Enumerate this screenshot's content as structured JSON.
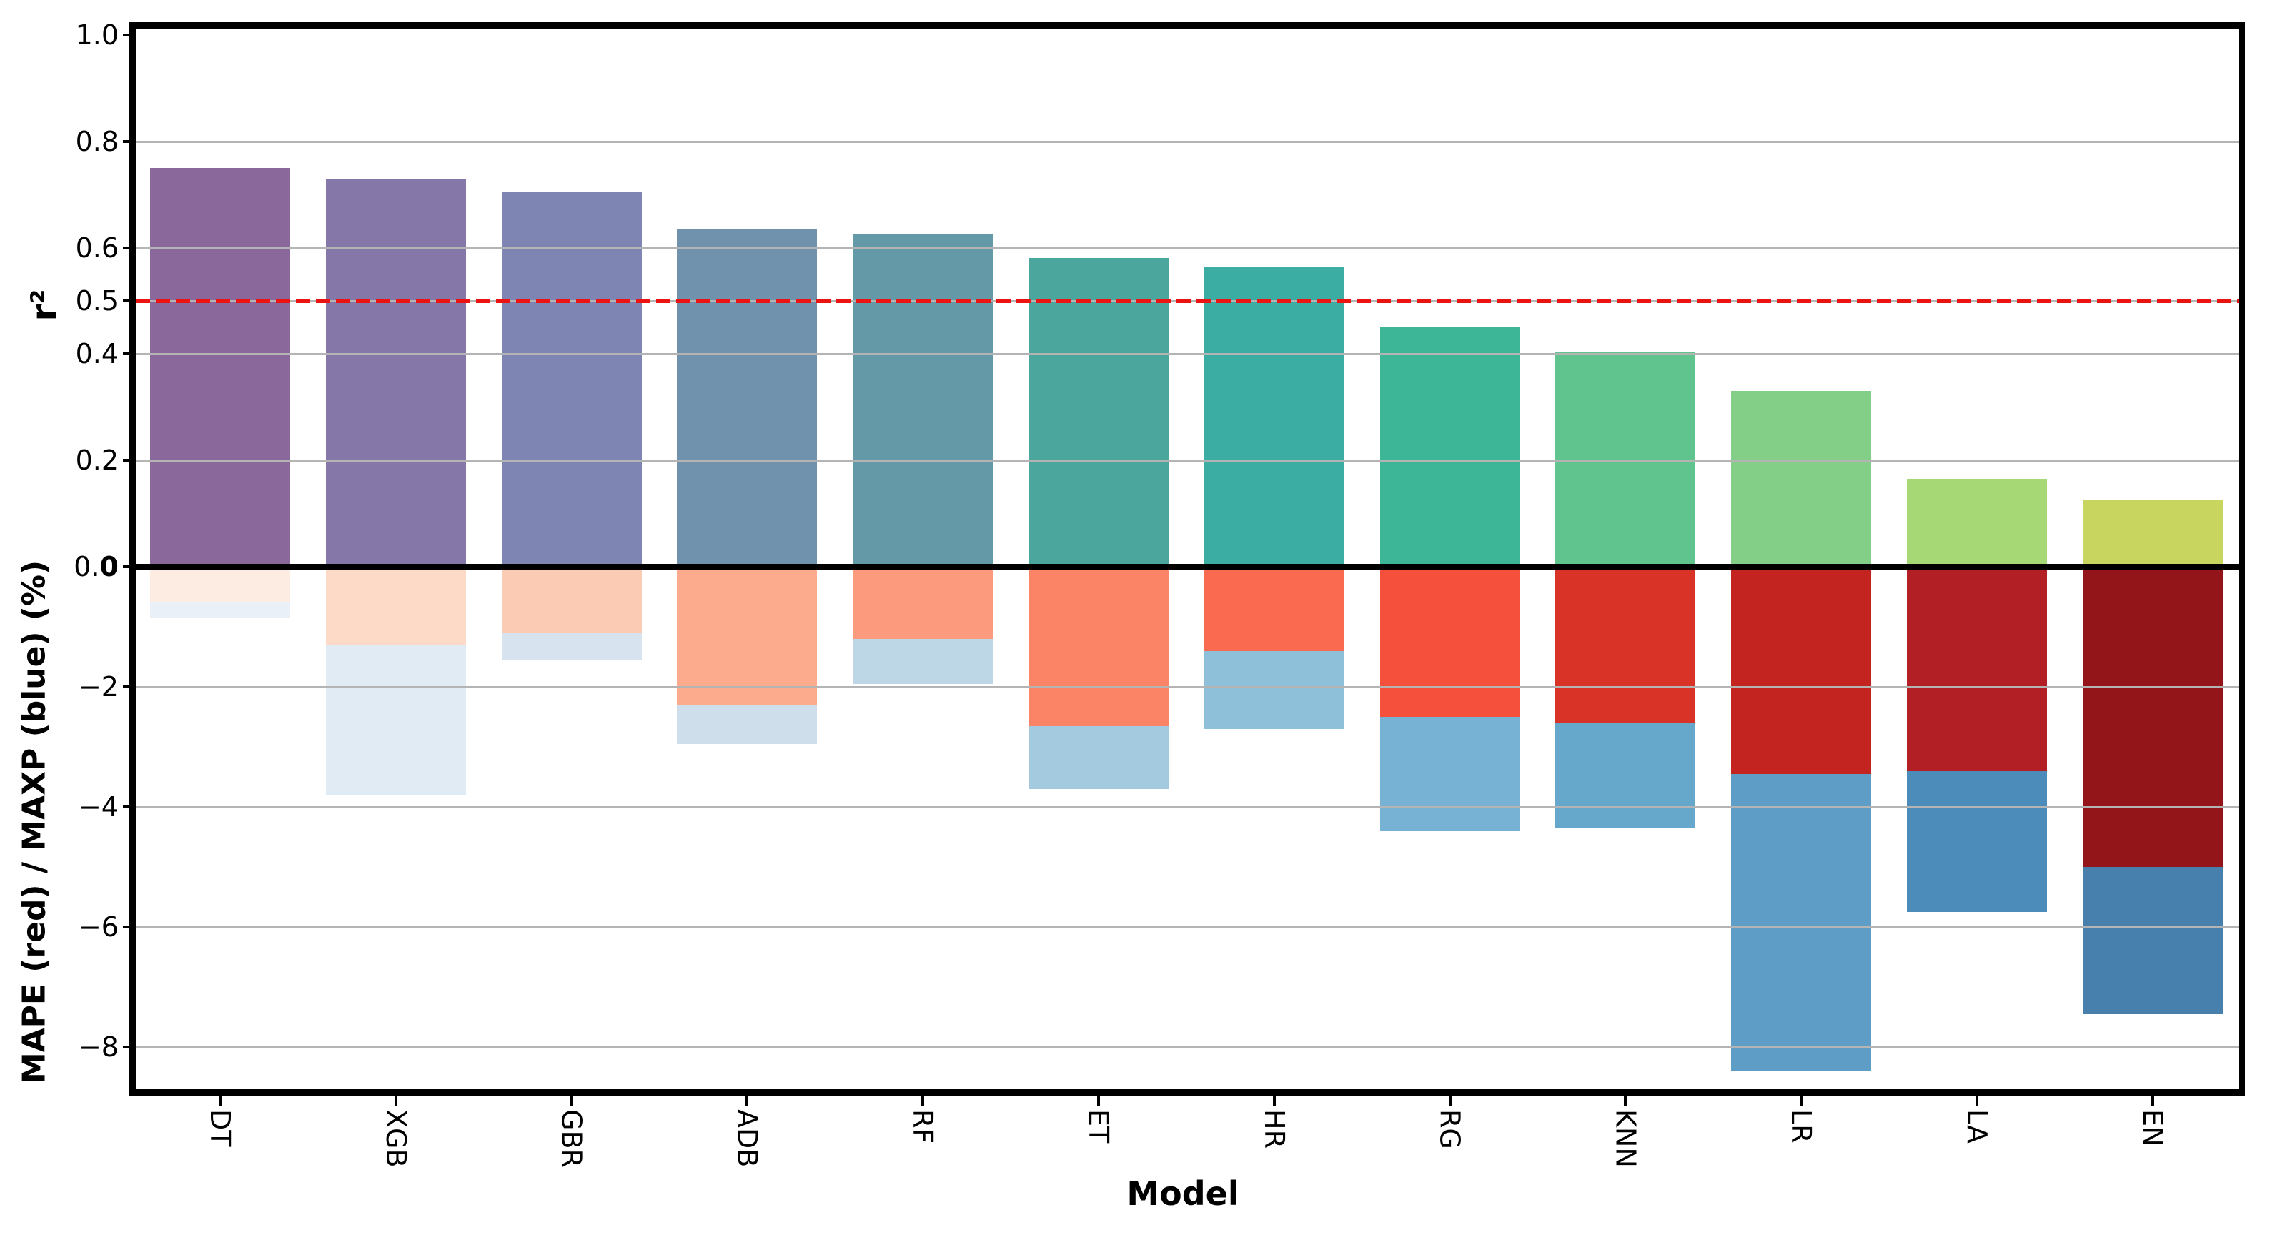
{
  "chart_data": {
    "type": "bar",
    "description": "Model comparison: r-squared bars above zero (colormap purple-to-yellow-green), MAPE (red) and MAXP (blue) percentage bars below zero, overlaid from the zero line downward.",
    "axes": {
      "xlabel": "Model",
      "ylabel_top": "r²",
      "ylabel_bottom": "MAPE (red) / MAXP (blue) (%)",
      "ylim_top": [
        0.0,
        1.0
      ],
      "ylim_bottom": [
        0.0,
        -8.7
      ],
      "grid": "on"
    },
    "y_axis_top_ticks": [
      {
        "label": "1.0",
        "value": 1.0,
        "gridline": false
      },
      {
        "label": "0.8",
        "value": 0.8,
        "gridline": true
      },
      {
        "label": "0.6",
        "value": 0.6,
        "gridline": true
      },
      {
        "label": "0.5",
        "value": 0.5,
        "gridline": true
      },
      {
        "label": "0.4",
        "value": 0.4,
        "gridline": true
      },
      {
        "label": "0.2",
        "value": 0.2,
        "gridline": true
      },
      {
        "label": "0.0",
        "value": 0.0,
        "gridline": false,
        "overlapped_bold": true
      }
    ],
    "y_axis_bottom_ticks": [
      {
        "label": "−2",
        "value": -2,
        "gridline": true
      },
      {
        "label": "−4",
        "value": -4,
        "gridline": true
      },
      {
        "label": "−6",
        "value": -6,
        "gridline": true
      },
      {
        "label": "−8",
        "value": -8,
        "gridline": true
      }
    ],
    "reference_line": {
      "value": 0.5,
      "color": "#ec1313",
      "style": "dashed"
    },
    "gridline_color": "#b4b4b4",
    "models": [
      {
        "label": "DT",
        "r2": 0.75,
        "mape_pct": -0.6,
        "maxp_pct": -0.85,
        "r2_color": "#8a689b",
        "mape_color": "#fdece1",
        "maxp_color": "#e9f0f8"
      },
      {
        "label": "XGB",
        "r2": 0.73,
        "mape_pct": -1.3,
        "maxp_pct": -3.8,
        "r2_color": "#8677a9",
        "mape_color": "#fdd9c7",
        "maxp_color": "#e1ebf4"
      },
      {
        "label": "GBR",
        "r2": 0.705,
        "mape_pct": -1.1,
        "maxp_pct": -1.55,
        "r2_color": "#7e85b3",
        "mape_color": "#fccbb3",
        "maxp_color": "#d7e4f0"
      },
      {
        "label": "ADB",
        "r2": 0.635,
        "mape_pct": -2.3,
        "maxp_pct": -2.95,
        "r2_color": "#7092ad",
        "mape_color": "#fcab8d",
        "maxp_color": "#cedeeb"
      },
      {
        "label": "RF",
        "r2": 0.625,
        "mape_pct": -1.2,
        "maxp_pct": -1.95,
        "r2_color": "#649aa7",
        "mape_color": "#fc9a7d",
        "maxp_color": "#bdd7e7"
      },
      {
        "label": "ET",
        "r2": 0.58,
        "mape_pct": -2.65,
        "maxp_pct": -3.7,
        "r2_color": "#4ba69e",
        "mape_color": "#fb8467",
        "maxp_color": "#a3cade"
      },
      {
        "label": "HR",
        "r2": 0.565,
        "mape_pct": -1.4,
        "maxp_pct": -2.7,
        "r2_color": "#3bada2",
        "mape_color": "#f96a50",
        "maxp_color": "#8fc0da"
      },
      {
        "label": "RG",
        "r2": 0.45,
        "mape_pct": -2.5,
        "maxp_pct": -4.4,
        "r2_color": "#3db597",
        "mape_color": "#f4503c",
        "maxp_color": "#77b1d3"
      },
      {
        "label": "KNN",
        "r2": 0.405,
        "mape_pct": -2.6,
        "maxp_pct": -4.35,
        "r2_color": "#5fc48d",
        "mape_color": "#d93327",
        "maxp_color": "#66a7cc"
      },
      {
        "label": "LR",
        "r2": 0.33,
        "mape_pct": -3.45,
        "maxp_pct": -8.4,
        "r2_color": "#83cf88",
        "mape_color": "#c42420",
        "maxp_color": "#5d9dc6"
      },
      {
        "label": "LA",
        "r2": 0.165,
        "mape_pct": -3.4,
        "maxp_pct": -5.75,
        "r2_color": "#a6d875",
        "mape_color": "#b22025",
        "maxp_color": "#4c8cba"
      },
      {
        "label": "EN",
        "r2": 0.125,
        "mape_pct": -5.0,
        "maxp_pct": -7.45,
        "r2_color": "#c8d65f",
        "mape_color": "#931419",
        "maxp_color": "#4880ad"
      }
    ]
  }
}
